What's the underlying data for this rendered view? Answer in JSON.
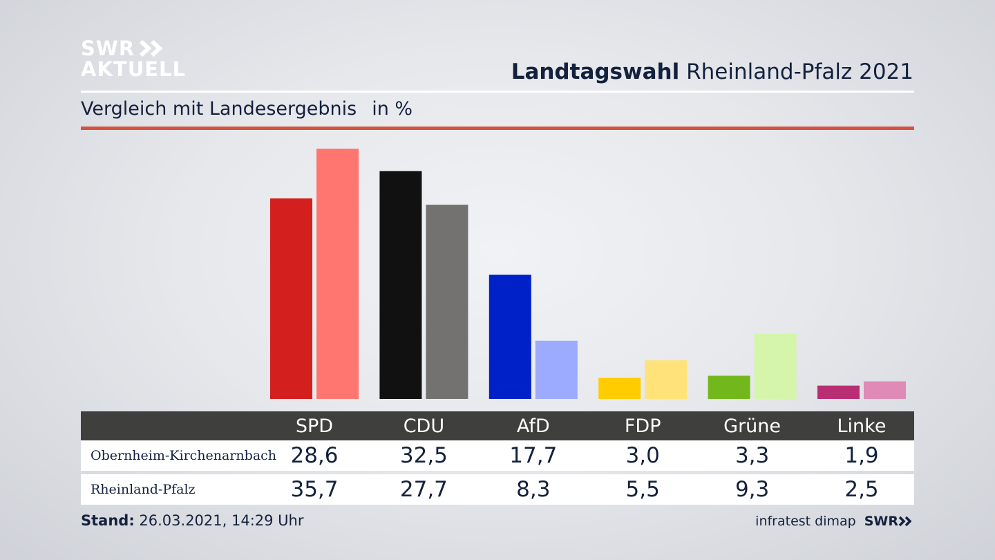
{
  "brand": {
    "logo_line1": "SWR",
    "logo_line2": "AKTUELL",
    "footer_swr": "SWR"
  },
  "header": {
    "title_bold": "Landtagswahl",
    "title_rest": " Rheinland-Pfalz 2021",
    "subtitle": "Vergleich mit Landesergebnis",
    "unit": "in %"
  },
  "colors": {
    "accent_rule": "#d4533f",
    "text": "#14213d"
  },
  "chart_data": {
    "type": "bar",
    "categories": [
      "SPD",
      "CDU",
      "AfD",
      "FDP",
      "Grüne",
      "Linke"
    ],
    "series": [
      {
        "name": "Obernheim-Kirchenarnbach",
        "values": [
          28.6,
          32.5,
          17.7,
          3.0,
          3.3,
          1.9
        ],
        "colors": [
          "#d41f1f",
          "#111111",
          "#0021c8",
          "#ffcc00",
          "#72b81c",
          "#b92e73"
        ]
      },
      {
        "name": "Rheinland-Pfalz",
        "values": [
          35.7,
          27.7,
          8.3,
          5.5,
          9.3,
          2.5
        ],
        "colors": [
          "#ff7670",
          "#737271",
          "#9cabff",
          "#ffe37a",
          "#d5f5aa",
          "#e08ab8"
        ]
      }
    ],
    "ylim": [
      0,
      35.7
    ]
  },
  "table": {
    "headers": [
      "SPD",
      "CDU",
      "AfD",
      "FDP",
      "Grüne",
      "Linke"
    ],
    "rows": [
      {
        "label": "Obernheim-Kirchenarnbach",
        "values": [
          "28,6",
          "32,5",
          "17,7",
          "3,0",
          "3,3",
          "1,9"
        ]
      },
      {
        "label": "Rheinland-Pfalz",
        "values": [
          "35,7",
          "27,7",
          "8,3",
          "5,5",
          "9,3",
          "2,5"
        ]
      }
    ]
  },
  "footer": {
    "stand_label": "Stand:",
    "stand_value": " 26.03.2021, 14:29 Uhr",
    "source": "infratest dimap"
  }
}
